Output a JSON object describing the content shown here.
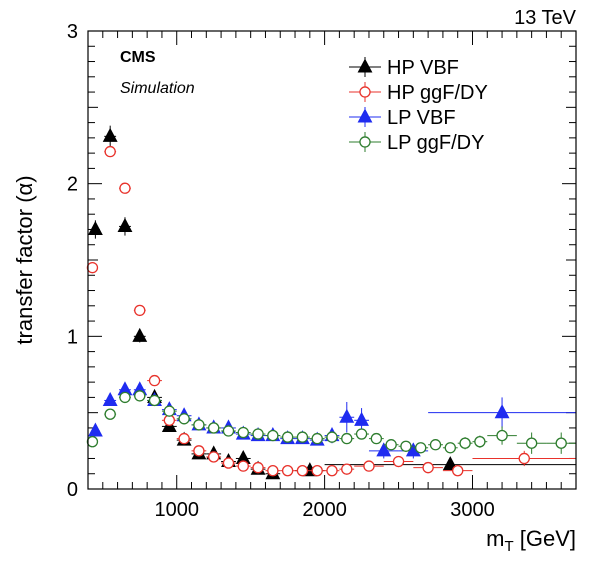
{
  "header": {
    "energy_label": "13 TeV"
  },
  "labels": {
    "experiment": "CMS",
    "status": "Simulation"
  },
  "colors": {
    "black": "#000000",
    "red": "#e8322b",
    "blue": "#1f2cf0",
    "green": "#2e7d2e"
  },
  "chart_data": {
    "type": "scatter",
    "xlabel": "m",
    "xlabel_sub": "T",
    "xlabel_unit": " [GeV]",
    "ylabel": "transfer factor (α)",
    "xlim": [
      400,
      3700
    ],
    "ylim": [
      0,
      3
    ],
    "x_ticks": [
      1000,
      2000,
      3000
    ],
    "y_ticks": [
      0,
      1,
      2,
      3
    ],
    "legend_position": "top-right",
    "grid": false,
    "series": [
      {
        "name": "HP VBF",
        "marker": "triangle",
        "fill": "filled",
        "color": "#000000",
        "points": [
          {
            "x": 450,
            "y": 1.7,
            "xerr": 30,
            "yerr": 0.06
          },
          {
            "x": 550,
            "y": 2.31,
            "xerr": 40,
            "yerr": 0.07
          },
          {
            "x": 650,
            "y": 1.72,
            "xerr": 40,
            "yerr": 0.06
          },
          {
            "x": 750,
            "y": 1.0,
            "xerr": 40,
            "yerr": 0.04
          },
          {
            "x": 850,
            "y": 0.6,
            "xerr": 50,
            "yerr": 0.03
          },
          {
            "x": 950,
            "y": 0.41,
            "xerr": 50,
            "yerr": 0.03
          },
          {
            "x": 1050,
            "y": 0.32,
            "xerr": 50,
            "yerr": 0.02
          },
          {
            "x": 1150,
            "y": 0.23,
            "xerr": 50,
            "yerr": 0.02
          },
          {
            "x": 1250,
            "y": 0.23,
            "xerr": 50,
            "yerr": 0.02
          },
          {
            "x": 1350,
            "y": 0.18,
            "xerr": 50,
            "yerr": 0.02
          },
          {
            "x": 1450,
            "y": 0.2,
            "xerr": 50,
            "yerr": 0.02
          },
          {
            "x": 1550,
            "y": 0.13,
            "xerr": 50,
            "yerr": 0.02
          },
          {
            "x": 1650,
            "y": 0.1,
            "xerr": 50,
            "yerr": 0.02
          },
          {
            "x": 1900,
            "y": 0.12,
            "xerr": 100,
            "yerr": 0.02
          },
          {
            "x": 2850,
            "y": 0.16,
            "xerr": 850,
            "yerr": 0.03
          }
        ]
      },
      {
        "name": "HP ggF/DY",
        "marker": "circle",
        "fill": "open",
        "color": "#e8322b",
        "points": [
          {
            "x": 430,
            "y": 1.45,
            "xerr": 20,
            "yerr": 0.03
          },
          {
            "x": 550,
            "y": 2.21,
            "xerr": 40,
            "yerr": 0.03
          },
          {
            "x": 650,
            "y": 1.97,
            "xerr": 40,
            "yerr": 0.03
          },
          {
            "x": 750,
            "y": 1.17,
            "xerr": 40,
            "yerr": 0.02
          },
          {
            "x": 850,
            "y": 0.71,
            "xerr": 50,
            "yerr": 0.02
          },
          {
            "x": 950,
            "y": 0.45,
            "xerr": 50,
            "yerr": 0.02
          },
          {
            "x": 1050,
            "y": 0.33,
            "xerr": 50,
            "yerr": 0.02
          },
          {
            "x": 1150,
            "y": 0.25,
            "xerr": 50,
            "yerr": 0.01
          },
          {
            "x": 1250,
            "y": 0.21,
            "xerr": 50,
            "yerr": 0.01
          },
          {
            "x": 1350,
            "y": 0.17,
            "xerr": 50,
            "yerr": 0.01
          },
          {
            "x": 1450,
            "y": 0.15,
            "xerr": 50,
            "yerr": 0.01
          },
          {
            "x": 1550,
            "y": 0.14,
            "xerr": 50,
            "yerr": 0.01
          },
          {
            "x": 1650,
            "y": 0.12,
            "xerr": 50,
            "yerr": 0.01
          },
          {
            "x": 1750,
            "y": 0.12,
            "xerr": 50,
            "yerr": 0.01
          },
          {
            "x": 1850,
            "y": 0.12,
            "xerr": 50,
            "yerr": 0.01
          },
          {
            "x": 1950,
            "y": 0.12,
            "xerr": 50,
            "yerr": 0.01
          },
          {
            "x": 2050,
            "y": 0.12,
            "xerr": 50,
            "yerr": 0.01
          },
          {
            "x": 2150,
            "y": 0.13,
            "xerr": 50,
            "yerr": 0.01
          },
          {
            "x": 2300,
            "y": 0.15,
            "xerr": 100,
            "yerr": 0.02
          },
          {
            "x": 2500,
            "y": 0.18,
            "xerr": 100,
            "yerr": 0.02
          },
          {
            "x": 2700,
            "y": 0.14,
            "xerr": 100,
            "yerr": 0.02
          },
          {
            "x": 2900,
            "y": 0.12,
            "xerr": 100,
            "yerr": 0.02
          },
          {
            "x": 3350,
            "y": 0.2,
            "xerr": 350,
            "yerr": 0.05
          }
        ]
      },
      {
        "name": "LP VBF",
        "marker": "triangle",
        "fill": "filled",
        "color": "#1f2cf0",
        "points": [
          {
            "x": 450,
            "y": 0.38,
            "xerr": 30,
            "yerr": 0.02
          },
          {
            "x": 550,
            "y": 0.58,
            "xerr": 40,
            "yerr": 0.02
          },
          {
            "x": 650,
            "y": 0.65,
            "xerr": 40,
            "yerr": 0.02
          },
          {
            "x": 750,
            "y": 0.65,
            "xerr": 40,
            "yerr": 0.02
          },
          {
            "x": 850,
            "y": 0.58,
            "xerr": 50,
            "yerr": 0.02
          },
          {
            "x": 950,
            "y": 0.52,
            "xerr": 50,
            "yerr": 0.02
          },
          {
            "x": 1050,
            "y": 0.48,
            "xerr": 50,
            "yerr": 0.02
          },
          {
            "x": 1150,
            "y": 0.42,
            "xerr": 50,
            "yerr": 0.02
          },
          {
            "x": 1250,
            "y": 0.4,
            "xerr": 50,
            "yerr": 0.02
          },
          {
            "x": 1350,
            "y": 0.4,
            "xerr": 50,
            "yerr": 0.02
          },
          {
            "x": 1450,
            "y": 0.36,
            "xerr": 50,
            "yerr": 0.02
          },
          {
            "x": 1550,
            "y": 0.35,
            "xerr": 50,
            "yerr": 0.02
          },
          {
            "x": 1650,
            "y": 0.35,
            "xerr": 50,
            "yerr": 0.02
          },
          {
            "x": 1750,
            "y": 0.33,
            "xerr": 50,
            "yerr": 0.02
          },
          {
            "x": 1850,
            "y": 0.33,
            "xerr": 50,
            "yerr": 0.02
          },
          {
            "x": 1950,
            "y": 0.32,
            "xerr": 50,
            "yerr": 0.03
          },
          {
            "x": 2050,
            "y": 0.35,
            "xerr": 50,
            "yerr": 0.05
          },
          {
            "x": 2150,
            "y": 0.47,
            "xerr": 50,
            "yerr": 0.1
          },
          {
            "x": 2250,
            "y": 0.45,
            "xerr": 50,
            "yerr": 0.08
          },
          {
            "x": 2400,
            "y": 0.25,
            "xerr": 100,
            "yerr": 0.05
          },
          {
            "x": 2600,
            "y": 0.25,
            "xerr": 100,
            "yerr": 0.05
          },
          {
            "x": 3200,
            "y": 0.5,
            "xerr": 500,
            "yerr": 0.1
          }
        ]
      },
      {
        "name": "LP ggF/DY",
        "marker": "circle",
        "fill": "open",
        "color": "#2e7d2e",
        "points": [
          {
            "x": 430,
            "y": 0.31,
            "xerr": 20,
            "yerr": 0.02
          },
          {
            "x": 550,
            "y": 0.49,
            "xerr": 40,
            "yerr": 0.02
          },
          {
            "x": 650,
            "y": 0.6,
            "xerr": 40,
            "yerr": 0.02
          },
          {
            "x": 750,
            "y": 0.61,
            "xerr": 40,
            "yerr": 0.02
          },
          {
            "x": 850,
            "y": 0.58,
            "xerr": 50,
            "yerr": 0.02
          },
          {
            "x": 950,
            "y": 0.51,
            "xerr": 50,
            "yerr": 0.02
          },
          {
            "x": 1050,
            "y": 0.46,
            "xerr": 50,
            "yerr": 0.02
          },
          {
            "x": 1150,
            "y": 0.42,
            "xerr": 50,
            "yerr": 0.02
          },
          {
            "x": 1250,
            "y": 0.4,
            "xerr": 50,
            "yerr": 0.02
          },
          {
            "x": 1350,
            "y": 0.38,
            "xerr": 50,
            "yerr": 0.02
          },
          {
            "x": 1450,
            "y": 0.37,
            "xerr": 50,
            "yerr": 0.02
          },
          {
            "x": 1550,
            "y": 0.36,
            "xerr": 50,
            "yerr": 0.02
          },
          {
            "x": 1650,
            "y": 0.35,
            "xerr": 50,
            "yerr": 0.02
          },
          {
            "x": 1750,
            "y": 0.34,
            "xerr": 50,
            "yerr": 0.02
          },
          {
            "x": 1850,
            "y": 0.34,
            "xerr": 50,
            "yerr": 0.02
          },
          {
            "x": 1950,
            "y": 0.33,
            "xerr": 50,
            "yerr": 0.02
          },
          {
            "x": 2050,
            "y": 0.34,
            "xerr": 50,
            "yerr": 0.02
          },
          {
            "x": 2150,
            "y": 0.33,
            "xerr": 50,
            "yerr": 0.02
          },
          {
            "x": 2250,
            "y": 0.36,
            "xerr": 50,
            "yerr": 0.02
          },
          {
            "x": 2350,
            "y": 0.33,
            "xerr": 50,
            "yerr": 0.02
          },
          {
            "x": 2450,
            "y": 0.29,
            "xerr": 50,
            "yerr": 0.02
          },
          {
            "x": 2550,
            "y": 0.28,
            "xerr": 50,
            "yerr": 0.02
          },
          {
            "x": 2650,
            "y": 0.27,
            "xerr": 50,
            "yerr": 0.02
          },
          {
            "x": 2750,
            "y": 0.29,
            "xerr": 50,
            "yerr": 0.02
          },
          {
            "x": 2850,
            "y": 0.27,
            "xerr": 50,
            "yerr": 0.02
          },
          {
            "x": 2950,
            "y": 0.3,
            "xerr": 50,
            "yerr": 0.04
          },
          {
            "x": 3050,
            "y": 0.31,
            "xerr": 50,
            "yerr": 0.04
          },
          {
            "x": 3200,
            "y": 0.35,
            "xerr": 100,
            "yerr": 0.06
          },
          {
            "x": 3400,
            "y": 0.3,
            "xerr": 100,
            "yerr": 0.07
          },
          {
            "x": 3600,
            "y": 0.3,
            "xerr": 100,
            "yerr": 0.07
          }
        ]
      }
    ]
  }
}
